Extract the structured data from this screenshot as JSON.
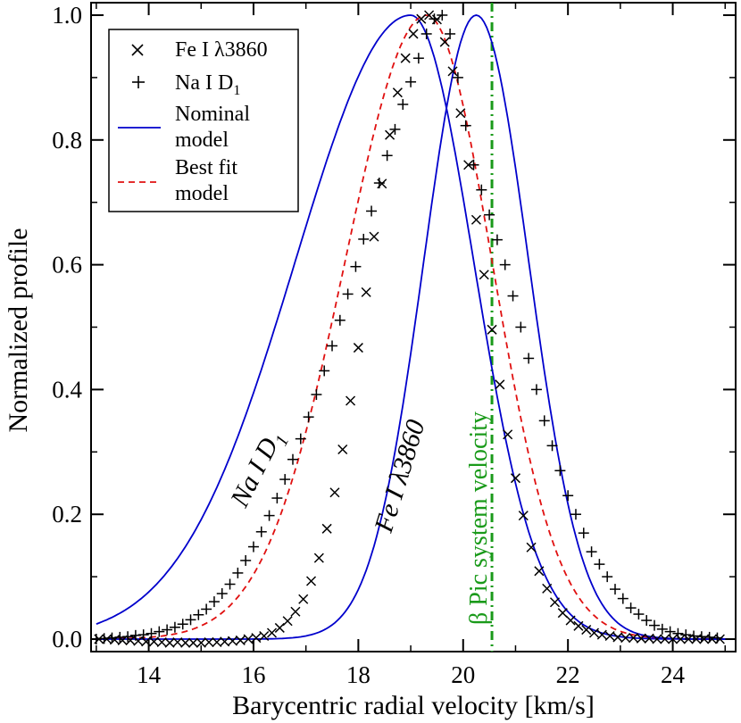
{
  "chart_data": {
    "type": "line+scatter",
    "xlabel": "Barycentric radial velocity [km/s]",
    "ylabel": "Normalized profile",
    "xlim": [
      12.9,
      25.2
    ],
    "ylim": [
      -0.02,
      1.02
    ],
    "x_ticks": [
      14,
      16,
      18,
      20,
      22,
      24
    ],
    "y_ticks": [
      0.0,
      0.2,
      0.4,
      0.6,
      0.8,
      1.0
    ],
    "x_tick_labels": [
      "14",
      "16",
      "18",
      "20",
      "22",
      "24"
    ],
    "y_tick_labels": [
      "0.0",
      "0.2",
      "0.4",
      "0.6",
      "0.8",
      "1.0"
    ],
    "legend": {
      "position": "top-left",
      "entries": [
        {
          "label": "Fe I λ3860",
          "marker": "x"
        },
        {
          "label": "Na I D1",
          "label_main": "Na I D",
          "label_sub": "1",
          "marker": "+"
        },
        {
          "label": "Nominal model",
          "line1": "Nominal",
          "line2": "model",
          "style": "solid",
          "color": "#0000cc"
        },
        {
          "label": "Best fit model",
          "line1": "Best fit",
          "line2": "model",
          "style": "dashed",
          "color": "#e01010"
        }
      ]
    },
    "annotations": {
      "na": {
        "main": "Na I D",
        "sub": "1"
      },
      "fe": "Fe I λ3860",
      "system": "β Pic system velocity"
    },
    "system_velocity": 20.55,
    "series": [
      {
        "name": "Fe I λ3860 data",
        "kind": "points",
        "marker": "x",
        "color": "#000000",
        "x": [
          13.05,
          13.2,
          13.35,
          13.5,
          13.65,
          13.8,
          13.95,
          14.1,
          14.25,
          14.4,
          14.55,
          14.7,
          14.85,
          15.0,
          15.15,
          15.3,
          15.45,
          15.6,
          15.75,
          15.9,
          16.05,
          16.2,
          16.35,
          16.5,
          16.65,
          16.8,
          16.95,
          17.1,
          17.25,
          17.4,
          17.55,
          17.7,
          17.85,
          18.0,
          18.15,
          18.3,
          18.45,
          18.6,
          18.75,
          18.9,
          19.05,
          19.2,
          19.35,
          19.5,
          19.65,
          19.8,
          19.95,
          20.1,
          20.25,
          20.4,
          20.55,
          20.7,
          20.85,
          21.0,
          21.15,
          21.3,
          21.45,
          21.6,
          21.75,
          21.9,
          22.05,
          22.2,
          22.35,
          22.5,
          22.65,
          22.8,
          22.95,
          23.1,
          23.25,
          23.4,
          23.55,
          23.7,
          23.85,
          24.0,
          24.15,
          24.3,
          24.45,
          24.6,
          24.75,
          24.9
        ],
        "y": [
          0.0,
          0.0,
          -0.001,
          -0.002,
          -0.002,
          -0.003,
          -0.004,
          -0.004,
          -0.005,
          -0.006,
          -0.005,
          -0.006,
          -0.006,
          -0.006,
          -0.005,
          -0.005,
          -0.004,
          -0.003,
          -0.002,
          0.0,
          0.002,
          0.005,
          0.01,
          0.018,
          0.029,
          0.044,
          0.064,
          0.093,
          0.13,
          0.177,
          0.235,
          0.304,
          0.382,
          0.467,
          0.556,
          0.645,
          0.73,
          0.808,
          0.876,
          0.931,
          0.97,
          0.994,
          1.0,
          0.993,
          0.957,
          0.91,
          0.843,
          0.76,
          0.672,
          0.584,
          0.496,
          0.408,
          0.328,
          0.258,
          0.198,
          0.147,
          0.109,
          0.081,
          0.059,
          0.042,
          0.03,
          0.021,
          0.015,
          0.01,
          0.007,
          0.005,
          0.003,
          0.002,
          0.002,
          0.001,
          0.001,
          0.0,
          0.0,
          0.0,
          0.0,
          0.0,
          0.0,
          0.0,
          0.0,
          0.0
        ]
      },
      {
        "name": "Na I D1 data",
        "kind": "points",
        "marker": "+",
        "color": "#000000",
        "x": [
          13.0,
          13.15,
          13.3,
          13.45,
          13.6,
          13.75,
          13.9,
          14.05,
          14.2,
          14.35,
          14.5,
          14.65,
          14.8,
          14.95,
          15.1,
          15.25,
          15.4,
          15.55,
          15.7,
          15.85,
          16.0,
          16.15,
          16.3,
          16.45,
          16.6,
          16.75,
          16.9,
          17.05,
          17.2,
          17.35,
          17.5,
          17.65,
          17.8,
          17.95,
          18.1,
          18.25,
          18.4,
          18.55,
          18.7,
          18.85,
          19.0,
          19.15,
          19.3,
          19.45,
          19.6,
          19.75,
          19.9,
          20.05,
          20.2,
          20.35,
          20.5,
          20.65,
          20.8,
          20.95,
          21.1,
          21.25,
          21.4,
          21.55,
          21.7,
          21.85,
          22.0,
          22.15,
          22.3,
          22.45,
          22.6,
          22.75,
          22.9,
          23.05,
          23.2,
          23.35,
          23.5,
          23.65,
          23.8,
          23.95,
          24.1,
          24.25,
          24.4,
          24.55,
          24.7,
          24.85
        ],
        "y": [
          0.0,
          0.001,
          0.002,
          0.003,
          0.004,
          0.006,
          0.007,
          0.009,
          0.012,
          0.015,
          0.019,
          0.024,
          0.031,
          0.039,
          0.048,
          0.06,
          0.073,
          0.088,
          0.106,
          0.126,
          0.148,
          0.172,
          0.198,
          0.226,
          0.256,
          0.288,
          0.321,
          0.356,
          0.392,
          0.43,
          0.47,
          0.511,
          0.553,
          0.597,
          0.641,
          0.686,
          0.731,
          0.775,
          0.817,
          0.857,
          0.893,
          0.931,
          0.97,
          0.994,
          1.0,
          0.97,
          0.9,
          0.823,
          0.76,
          0.72,
          0.68,
          0.64,
          0.6,
          0.55,
          0.5,
          0.45,
          0.4,
          0.35,
          0.31,
          0.27,
          0.23,
          0.2,
          0.17,
          0.14,
          0.12,
          0.1,
          0.08,
          0.065,
          0.05,
          0.04,
          0.03,
          0.022,
          0.016,
          0.012,
          0.009,
          0.007,
          0.005,
          0.004,
          0.003,
          0.002
        ]
      },
      {
        "name": "Nominal model (Na I D1)",
        "kind": "line",
        "style": "solid",
        "color": "#0000cc",
        "center": 19.0,
        "sigma_left": 2.2,
        "sigma_right": 1.2
      },
      {
        "name": "Best fit model (Na I D1)",
        "kind": "line",
        "style": "dashed",
        "color": "#e01010",
        "center": 19.3,
        "sigma_left": 1.55,
        "sigma_right": 1.25
      },
      {
        "name": "Nominal model (Fe I λ3860)",
        "kind": "line",
        "style": "solid",
        "color": "#0000cc",
        "center": 20.25,
        "sigma_left": 1.0,
        "sigma_right": 1.0
      }
    ]
  }
}
